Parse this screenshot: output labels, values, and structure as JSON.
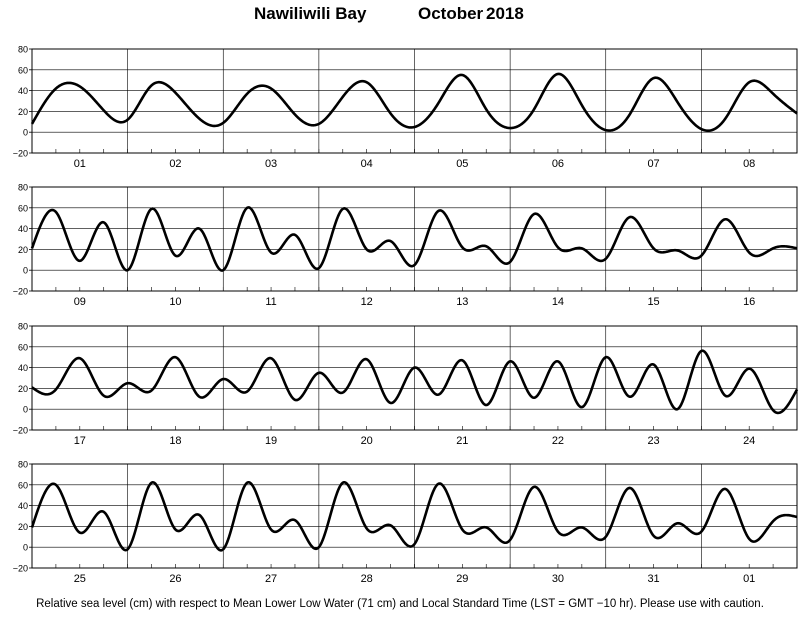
{
  "header": {
    "station": "Nawiliwili Bay",
    "month": "October",
    "year": "2018"
  },
  "footnote": "Relative sea level (cm) with respect to Mean Lower Low Water (71 cm) and Local Standard Time (LST = GMT −10 hr). Please use with caution.",
  "colors": {
    "curve": "#000000",
    "grid": "#000000",
    "background": "#ffffff"
  },
  "chart_data": {
    "type": "line",
    "title": "Nawiliwili Bay October 2018",
    "ylim": [
      -20,
      80
    ],
    "yticks": [
      -20,
      0,
      20,
      40,
      60,
      80
    ],
    "ytick_labels": [
      "−20",
      "0",
      "20",
      "40",
      "60",
      "80"
    ],
    "grid": true,
    "x_unit": "days (LST)",
    "panels": [
      {
        "days": [
          "01",
          "02",
          "03",
          "04",
          "05",
          "06",
          "07",
          "08"
        ],
        "series": [
          {
            "x": [
              0,
              0.25,
              0.5,
              0.75,
              1,
              1.25,
              1.5,
              1.75,
              2,
              2.25,
              2.5,
              2.75,
              3,
              3.25,
              3.5,
              3.75,
              4,
              4.25,
              4.5,
              4.75,
              5,
              5.25,
              5.5,
              5.75,
              6,
              6.25,
              6.5,
              6.75,
              7,
              7.25,
              7.5,
              7.75,
              8
            ],
            "y": [
              8,
              42,
              44,
              21,
              12,
              45,
              38,
              13,
              9,
              37,
              42,
              17,
              8,
              34,
              48,
              18,
              5,
              28,
              55,
              22,
              4,
              22,
              56,
              26,
              2,
              17,
              52,
              29,
              3,
              13,
              48,
              37,
              18
            ]
          }
        ]
      },
      {
        "days": [
          "09",
          "10",
          "11",
          "12",
          "13",
          "14",
          "15",
          "16"
        ],
        "series": [
          {
            "x": [
              0,
              0.25,
              0.5,
              0.75,
              1,
              1.25,
              1.5,
              1.75,
              2,
              2.25,
              2.5,
              2.75,
              3,
              3.25,
              3.5,
              3.75,
              4,
              4.25,
              4.5,
              4.75,
              5,
              5.25,
              5.5,
              5.75,
              6,
              6.25,
              6.5,
              6.75,
              7,
              7.25,
              7.5,
              7.75,
              8
            ],
            "y": [
              21,
              56,
              9,
              46,
              0,
              59,
              14,
              40,
              0,
              60,
              17,
              34,
              2,
              59,
              20,
              28,
              5,
              57,
              22,
              23,
              8,
              54,
              22,
              21,
              11,
              51,
              21,
              19,
              14,
              49,
              17,
              21,
              21
            ]
          }
        ]
      },
      {
        "days": [
          "17",
          "18",
          "19",
          "20",
          "21",
          "22",
          "23",
          "24"
        ],
        "series": [
          {
            "x": [
              0,
              0.25,
              0.5,
              0.75,
              1,
              1.25,
              1.5,
              1.75,
              2,
              2.25,
              2.5,
              2.75,
              3,
              3.25,
              3.5,
              3.75,
              4,
              4.25,
              4.5,
              4.75,
              5,
              5.25,
              5.5,
              5.75,
              6,
              6.25,
              6.5,
              6.75,
              7,
              7.25,
              7.5,
              7.75,
              8
            ],
            "y": [
              21,
              19,
              49,
              13,
              25,
              18,
              50,
              12,
              29,
              17,
              49,
              9,
              35,
              16,
              48,
              6,
              40,
              14,
              47,
              4,
              46,
              11,
              46,
              2,
              50,
              12,
              43,
              0,
              56,
              13,
              39,
              -1,
              19
            ]
          }
        ]
      },
      {
        "days": [
          "25",
          "26",
          "27",
          "28",
          "29",
          "30",
          "31",
          "01"
        ],
        "series": [
          {
            "x": [
              0,
              0.25,
              0.5,
              0.75,
              1,
              1.25,
              1.5,
              1.75,
              2,
              2.25,
              2.5,
              2.75,
              3,
              3.25,
              3.5,
              3.75,
              4,
              4.25,
              4.5,
              4.75,
              5,
              5.25,
              5.5,
              5.75,
              6,
              6.25,
              6.5,
              6.75,
              7,
              7.25,
              7.5,
              7.75,
              8
            ],
            "y": [
              19,
              60,
              14,
              34,
              -2,
              62,
              17,
              31,
              -2,
              62,
              17,
              26,
              0,
              62,
              18,
              21,
              3,
              61,
              17,
              19,
              7,
              58,
              15,
              19,
              10,
              57,
              11,
              23,
              15,
              56,
              8,
              25,
              29
            ]
          }
        ]
      }
    ]
  }
}
